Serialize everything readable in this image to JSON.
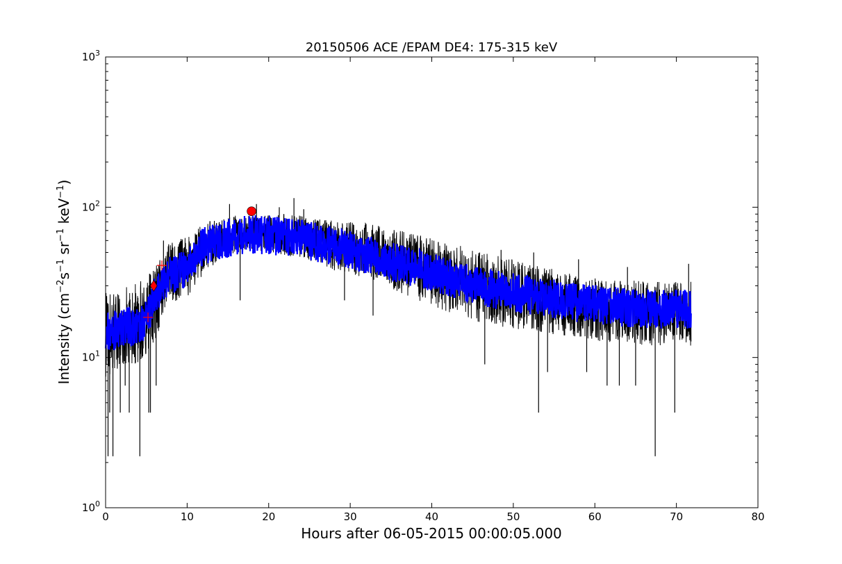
{
  "chart_data": {
    "type": "line",
    "title": "20150506 ACE /EPAM DE4: 175-315 keV",
    "xlabel": "Hours after 06-05-2015 00:00:05.000",
    "ylabel_parts": [
      "Intensity (cm",
      "−2",
      "s",
      "−1",
      " sr",
      "−1",
      " keV",
      "−1",
      ")"
    ],
    "xlim": [
      0,
      80
    ],
    "ylim": [
      1,
      1000
    ],
    "yscale": "log",
    "grid": false,
    "x_ticks": [
      0,
      10,
      20,
      30,
      40,
      50,
      60,
      70,
      80
    ],
    "x_tick_labels": [
      "0",
      "10",
      "20",
      "30",
      "40",
      "50",
      "60",
      "70",
      "80"
    ],
    "y_ticks": [
      {
        "value": 1,
        "base": "10",
        "exp": "0"
      },
      {
        "value": 10,
        "base": "10",
        "exp": "1"
      },
      {
        "value": 100,
        "base": "10",
        "exp": "2"
      },
      {
        "value": 1000,
        "base": "10",
        "exp": "3"
      }
    ],
    "raw_series": {
      "color": "#000000",
      "envelope": {
        "x": [
          0,
          1,
          2,
          3,
          4,
          5,
          6,
          7,
          8,
          10,
          12,
          14,
          16,
          18,
          20,
          22,
          24,
          26,
          28,
          30,
          32,
          34,
          36,
          38,
          40,
          42,
          44,
          46,
          48,
          50,
          52,
          54,
          56,
          58,
          60,
          62,
          64,
          66,
          68,
          70,
          71.8
        ],
        "lo": [
          7,
          8,
          8.5,
          9,
          9,
          9,
          12,
          18,
          22,
          25,
          35,
          45,
          50,
          52,
          50,
          48,
          45,
          42,
          38,
          36,
          33,
          30,
          27,
          24,
          22,
          20,
          19,
          17,
          16,
          15.5,
          15,
          14.5,
          14,
          13.5,
          13,
          12.5,
          12.5,
          12,
          12,
          12,
          12
        ],
        "hi": [
          28,
          28,
          30,
          32,
          32,
          35,
          42,
          55,
          58,
          65,
          80,
          85,
          88,
          90,
          90,
          90,
          88,
          85,
          82,
          80,
          78,
          74,
          70,
          66,
          62,
          58,
          55,
          52,
          48,
          45,
          42,
          40,
          38,
          36,
          34,
          33,
          33,
          32,
          32,
          32,
          32
        ]
      },
      "dips": [
        {
          "x": 0.3,
          "y": 2.2
        },
        {
          "x": 0.9,
          "y": 2.2
        },
        {
          "x": 4.2,
          "y": 2.2
        },
        {
          "x": 0.5,
          "y": 4.3
        },
        {
          "x": 1.8,
          "y": 4.3
        },
        {
          "x": 2.9,
          "y": 4.3
        },
        {
          "x": 5.3,
          "y": 4.3
        },
        {
          "x": 5.5,
          "y": 4.3
        },
        {
          "x": 2.4,
          "y": 6.5
        },
        {
          "x": 6.2,
          "y": 6.5
        },
        {
          "x": 16.5,
          "y": 24
        },
        {
          "x": 29.3,
          "y": 24
        },
        {
          "x": 32.8,
          "y": 19
        },
        {
          "x": 46.5,
          "y": 9
        },
        {
          "x": 53.1,
          "y": 4.3
        },
        {
          "x": 54.2,
          "y": 8
        },
        {
          "x": 59,
          "y": 8
        },
        {
          "x": 61.5,
          "y": 6.5
        },
        {
          "x": 63,
          "y": 6.5
        },
        {
          "x": 65,
          "y": 6.5
        },
        {
          "x": 67.4,
          "y": 2.2
        },
        {
          "x": 69.8,
          "y": 4.3
        }
      ],
      "spikes": [
        {
          "x": 15.2,
          "y": 105
        },
        {
          "x": 18.5,
          "y": 105
        },
        {
          "x": 21.3,
          "y": 100
        },
        {
          "x": 23.1,
          "y": 115
        },
        {
          "x": 24.3,
          "y": 97
        },
        {
          "x": 7.1,
          "y": 60
        },
        {
          "x": 48.5,
          "y": 52
        },
        {
          "x": 52.5,
          "y": 50
        },
        {
          "x": 58,
          "y": 45
        },
        {
          "x": 64,
          "y": 40
        },
        {
          "x": 71.5,
          "y": 42
        }
      ]
    },
    "smoothed_series": {
      "color": "#0000ff",
      "x": [
        0,
        1,
        2,
        3,
        4,
        5,
        6,
        7,
        8,
        10,
        12,
        14,
        16,
        18,
        20,
        22,
        24,
        26,
        28,
        30,
        32,
        34,
        36,
        38,
        40,
        42,
        44,
        46,
        48,
        50,
        52,
        54,
        56,
        58,
        60,
        62,
        64,
        66,
        68,
        70,
        71.8
      ],
      "center": [
        15,
        15,
        16,
        16,
        16,
        18,
        25,
        32,
        35,
        40,
        55,
        60,
        64,
        66,
        65,
        64,
        62,
        58,
        55,
        52,
        48,
        45,
        42,
        39,
        37,
        34,
        32,
        30,
        28,
        27,
        26,
        25,
        24,
        23,
        22.5,
        22,
        21.5,
        21,
        21,
        21,
        21
      ],
      "halfwidth_factor": 1.35
    },
    "markers": [
      {
        "type": "circle",
        "x": 17.9,
        "y": 94,
        "color": "#ff0000"
      },
      {
        "type": "diamond",
        "x": 5.9,
        "y": 30,
        "color": "#ff0000"
      },
      {
        "type": "plus",
        "x": 5.2,
        "y": 18.5,
        "color": "#ff0000"
      },
      {
        "type": "plus",
        "x": 6.9,
        "y": 41,
        "color": "#ff0000"
      }
    ]
  }
}
